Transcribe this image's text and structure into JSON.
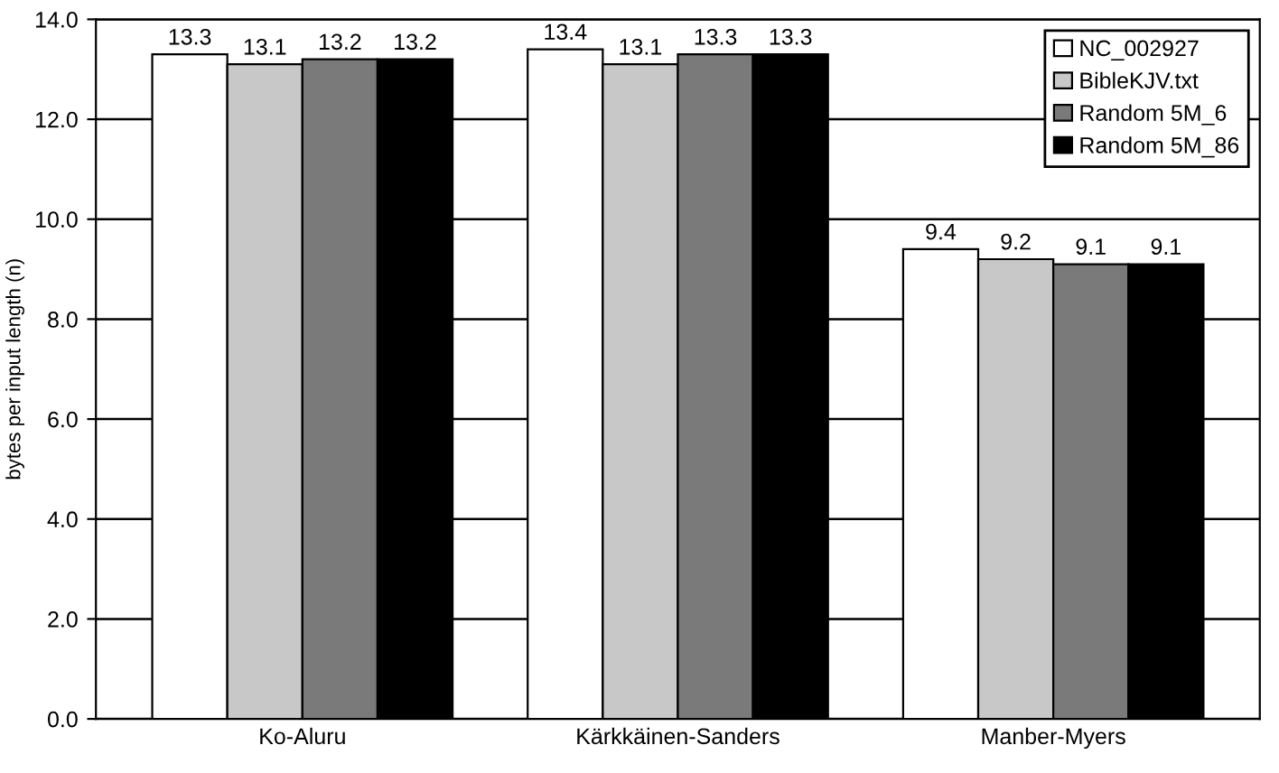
{
  "chart_data": {
    "type": "bar",
    "ylabel": "bytes per input length (n)",
    "categories": [
      "Ko-Aluru",
      "Kärkkäinen-Sanders",
      "Manber-Myers"
    ],
    "series": [
      {
        "name": "NC_002927",
        "color": "#ffffff",
        "values": [
          13.3,
          13.4,
          9.4
        ]
      },
      {
        "name": "BibleKJV.txt",
        "color": "#c8c8c8",
        "values": [
          13.1,
          13.1,
          9.2
        ]
      },
      {
        "name": "Random 5M_6",
        "color": "#7a7a7a",
        "values": [
          13.2,
          13.3,
          9.1
        ]
      },
      {
        "name": "Random 5M_86",
        "color": "#000000",
        "values": [
          13.2,
          13.3,
          9.1
        ]
      }
    ],
    "ylim": [
      0,
      14
    ],
    "yticks": [
      {
        "value": 0,
        "label": "0.0"
      },
      {
        "value": 2,
        "label": "2.0"
      },
      {
        "value": 4,
        "label": "4.0"
      },
      {
        "value": 6,
        "label": "6.0"
      },
      {
        "value": 8,
        "label": "8.0"
      },
      {
        "value": 10,
        "label": "10.0"
      },
      {
        "value": 12,
        "label": "12.0"
      },
      {
        "value": 14,
        "label": "14.0"
      }
    ],
    "grid": "y",
    "legend": "top right",
    "data_labels": true
  }
}
